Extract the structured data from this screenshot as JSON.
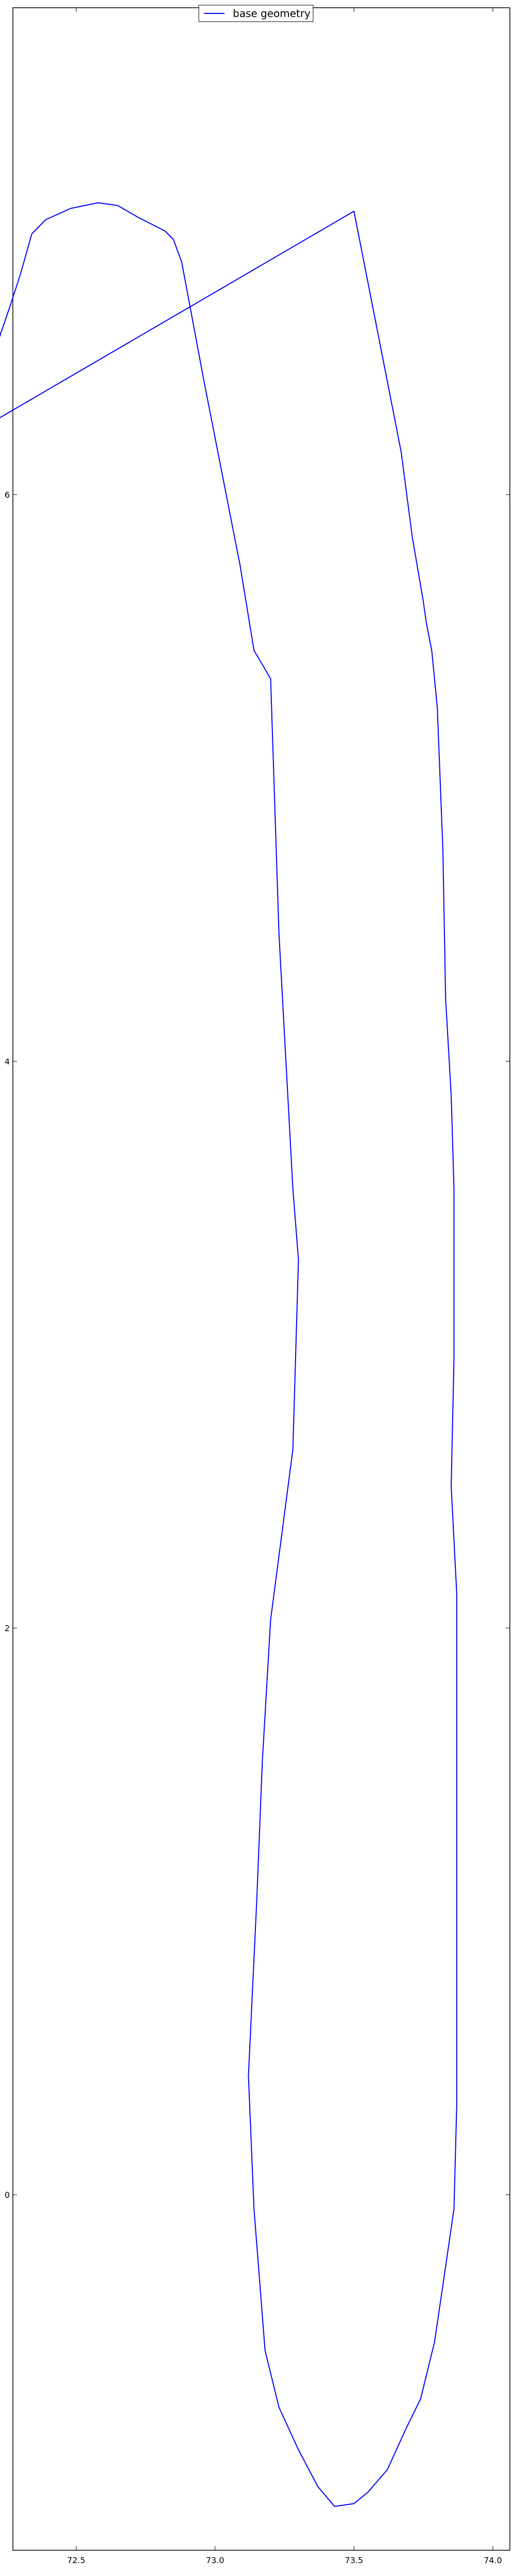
{
  "chart_data": {
    "type": "line",
    "title": "",
    "xlabel": "",
    "ylabel": "",
    "xlim": [
      72.5,
      74.0
    ],
    "ylim": [
      -1.5,
      7.5
    ],
    "x_ticks": [
      72.5,
      73.0,
      73.5,
      74.0
    ],
    "x_tick_labels": [
      "72.5",
      "73.0",
      "73.5",
      "74.0"
    ],
    "y_ticks": [
      0,
      2,
      4,
      6
    ],
    "y_tick_labels": [
      "0",
      "2",
      "4",
      "6"
    ],
    "grid": false,
    "legend": {
      "position": "top-center",
      "entries": [
        "base geometry"
      ]
    },
    "series": [
      {
        "name": "base geometry",
        "color": "#0000ff",
        "points": [
          [
            72.1,
            6.2
          ],
          [
            72.26,
            6.66
          ],
          [
            72.3,
            6.78
          ],
          [
            72.34,
            6.92
          ],
          [
            72.39,
            6.97
          ],
          [
            72.48,
            7.01
          ],
          [
            72.58,
            7.03
          ],
          [
            72.65,
            7.02
          ],
          [
            72.72,
            6.98
          ],
          [
            72.82,
            6.93
          ],
          [
            72.85,
            6.9
          ],
          [
            72.88,
            6.82
          ],
          [
            72.96,
            6.4
          ],
          [
            73.09,
            5.75
          ],
          [
            73.14,
            5.45
          ],
          [
            73.17,
            5.4
          ],
          [
            73.2,
            5.35
          ],
          [
            73.23,
            4.45
          ],
          [
            73.28,
            3.55
          ],
          [
            73.3,
            3.3
          ],
          [
            73.28,
            2.63
          ],
          [
            73.2,
            2.03
          ],
          [
            73.17,
            1.53
          ],
          [
            73.15,
            1.04
          ],
          [
            73.12,
            0.42
          ],
          [
            73.14,
            -0.05
          ],
          [
            73.18,
            -0.55
          ],
          [
            73.23,
            -0.75
          ],
          [
            73.3,
            -0.9
          ],
          [
            73.37,
            -1.03
          ],
          [
            73.43,
            -1.1
          ],
          [
            73.5,
            -1.09
          ],
          [
            73.55,
            -1.05
          ],
          [
            73.62,
            -0.97
          ],
          [
            73.69,
            -0.82
          ],
          [
            73.74,
            -0.72
          ],
          [
            73.79,
            -0.52
          ],
          [
            73.82,
            -0.32
          ],
          [
            73.86,
            -0.05
          ],
          [
            73.87,
            0.32
          ],
          [
            73.87,
            2.12
          ],
          [
            73.85,
            2.5
          ],
          [
            73.86,
            2.95
          ],
          [
            73.86,
            3.55
          ],
          [
            73.85,
            3.88
          ],
          [
            73.83,
            4.22
          ],
          [
            73.82,
            4.75
          ],
          [
            73.8,
            5.25
          ],
          [
            73.78,
            5.45
          ],
          [
            73.76,
            5.55
          ],
          [
            73.75,
            5.62
          ],
          [
            73.71,
            5.85
          ],
          [
            73.67,
            6.15
          ],
          [
            73.58,
            6.6
          ],
          [
            73.5,
            7.0
          ]
        ]
      }
    ]
  }
}
